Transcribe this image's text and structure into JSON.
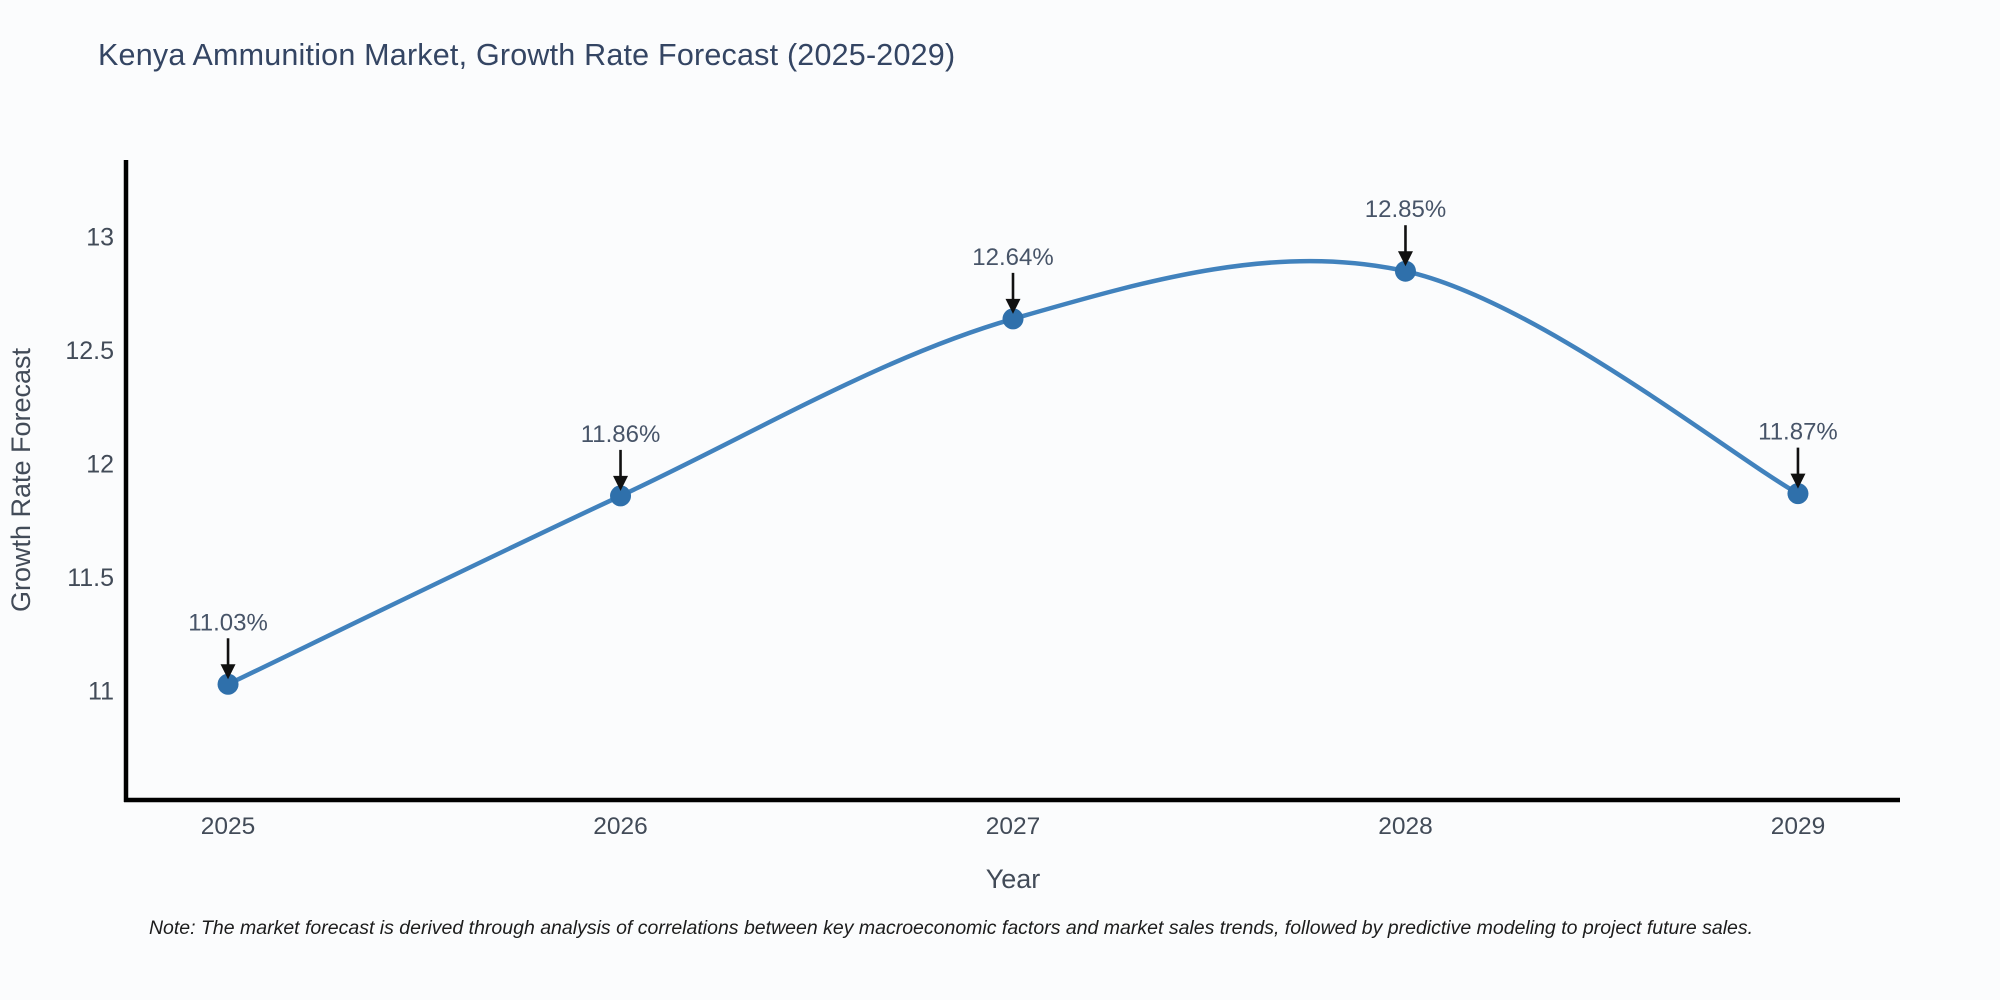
{
  "title": "Kenya Ammunition Market, Growth Rate Forecast (2025-2029)",
  "note": "Note: The market forecast is derived through analysis of correlations between key macroeconomic factors and market sales trends, followed by predictive modeling to project future sales.",
  "chart_data": {
    "type": "line",
    "title": "Kenya Ammunition Market, Growth Rate Forecast (2025-2029)",
    "x": [
      2025,
      2026,
      2027,
      2028,
      2029
    ],
    "xtick_labels": [
      "2025",
      "2026",
      "2027",
      "2028",
      "2029"
    ],
    "series": [
      {
        "name": "Growth Rate Forecast",
        "values": [
          11.03,
          11.86,
          12.64,
          12.85,
          11.87
        ]
      }
    ],
    "point_labels": [
      "11.03%",
      "11.86%",
      "12.64%",
      "12.85%",
      "11.87%"
    ],
    "xlabel": "Year",
    "ylabel": "Growth Rate Forecast",
    "yticks": [
      11,
      11.5,
      12,
      12.5,
      13
    ],
    "ytick_labels": [
      "11",
      "11.5",
      "12",
      "12.5",
      "13"
    ],
    "xlim": [
      2024.74,
      2029.26
    ],
    "ylim": [
      10.52,
      13.34
    ],
    "grid": false,
    "legend": "none",
    "curve": "smooth-spline",
    "annotation_style": "down-arrow",
    "colors": {
      "line": "#4182bd",
      "marker": "#2f70ab",
      "axis": "#000000",
      "title": "#344563",
      "tick": "#424b58",
      "annotation_text": "#475468",
      "arrow": "#111111",
      "background": "#fbfcfd"
    }
  }
}
